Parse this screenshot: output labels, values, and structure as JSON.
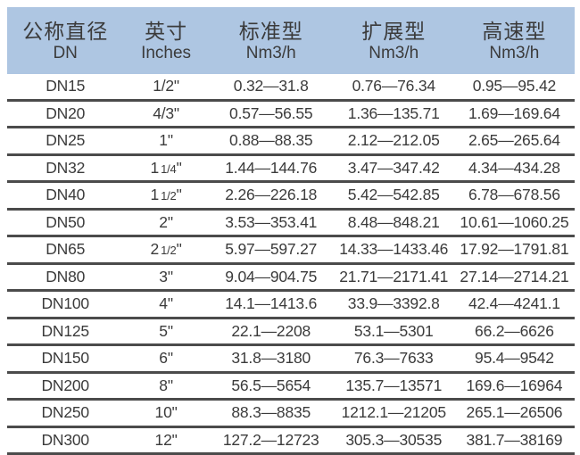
{
  "colors": {
    "header_bg": "#aec6e2",
    "line": "#4b4b4b",
    "text": "#3b3b3b"
  },
  "table": {
    "columns": [
      {
        "title": "公称直径",
        "subtitle": "DN"
      },
      {
        "title": "英寸",
        "subtitle": "Inches"
      },
      {
        "title": "标准型",
        "subtitle": "Nm3/h"
      },
      {
        "title": "扩展型",
        "subtitle": "Nm3/h"
      },
      {
        "title": "高速型",
        "subtitle": "Nm3/h"
      }
    ],
    "rows": [
      {
        "dn": "DN15",
        "inches": "1/2\"",
        "standard": "0.32—31.8",
        "extended": "0.76—76.34",
        "high_speed": "0.95—95.42"
      },
      {
        "dn": "DN20",
        "inches": "4/3\"",
        "standard": "0.57—56.55",
        "extended": "1.36—135.71",
        "high_speed": "1.69—169.64"
      },
      {
        "dn": "DN25",
        "inches": "1\"",
        "standard": "0.88—88.35",
        "extended": "2.12—212.05",
        "high_speed": "2.65—265.64"
      },
      {
        "dn": "DN32",
        "inches": "1 1/4\"",
        "standard": "1.44—144.76",
        "extended": "3.47—347.42",
        "high_speed": "4.34—434.28"
      },
      {
        "dn": "DN40",
        "inches": "1 1/2\"",
        "standard": "2.26—226.18",
        "extended": "5.42—542.85",
        "high_speed": "6.78—678.56"
      },
      {
        "dn": "DN50",
        "inches": "2\"",
        "standard": "3.53—353.41",
        "extended": "8.48—848.21",
        "high_speed": "10.61—1060.25"
      },
      {
        "dn": "DN65",
        "inches": "2 1/2\"",
        "standard": "5.97—597.27",
        "extended": "14.33—1433.46",
        "high_speed": "17.92—1791.81"
      },
      {
        "dn": "DN80",
        "inches": "3\"",
        "standard": "9.04—904.75",
        "extended": "21.71—2171.41",
        "high_speed": "27.14—2714.21"
      },
      {
        "dn": "DN100",
        "inches": "4\"",
        "standard": "14.1—1413.6",
        "extended": "33.9—3392.8",
        "high_speed": "42.4—4241.1"
      },
      {
        "dn": "DN125",
        "inches": "5\"",
        "standard": "22.1—2208",
        "extended": "53.1—5301",
        "high_speed": "66.2—6626"
      },
      {
        "dn": "DN150",
        "inches": "6\"",
        "standard": "31.8—3180",
        "extended": "76.3—7633",
        "high_speed": "95.4—9542"
      },
      {
        "dn": "DN200",
        "inches": "8\"",
        "standard": "56.5—5654",
        "extended": "135.7—13571",
        "high_speed": "169.6—16964"
      },
      {
        "dn": "DN250",
        "inches": "10\"",
        "standard": "88.3—8835",
        "extended": "1212.1—21205",
        "high_speed": "265.1—26506"
      },
      {
        "dn": "DN300",
        "inches": "12\"",
        "standard": "127.2—12723",
        "extended": "305.3—30535",
        "high_speed": "381.7—38169"
      }
    ]
  }
}
